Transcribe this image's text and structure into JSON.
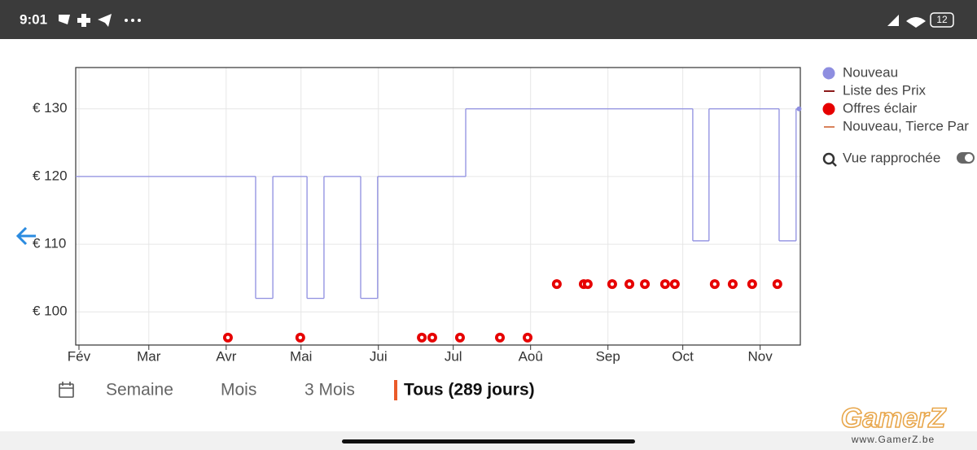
{
  "status_bar": {
    "time": "9:01",
    "battery": "12"
  },
  "chart_data": {
    "type": "step",
    "ylim": [
      95.1,
      136.1
    ],
    "yticks": [
      {
        "value": 100,
        "label": "€ 100"
      },
      {
        "value": 110,
        "label": "€ 110"
      },
      {
        "value": 120,
        "label": "€ 120"
      },
      {
        "value": 130,
        "label": "€ 130"
      }
    ],
    "xlim": [
      -1.3,
      289.1
    ],
    "xticks": [
      {
        "value": 0,
        "label": "Fév"
      },
      {
        "value": 28,
        "label": "Mar"
      },
      {
        "value": 59,
        "label": "Avr"
      },
      {
        "value": 89,
        "label": "Mai"
      },
      {
        "value": 120,
        "label": "Jui"
      },
      {
        "value": 150,
        "label": "Jul"
      },
      {
        "value": 181,
        "label": "Aoû"
      },
      {
        "value": 212,
        "label": "Sep"
      },
      {
        "value": 242,
        "label": "Oct"
      },
      {
        "value": 273,
        "label": "Nov"
      }
    ],
    "grid": true,
    "series": [
      {
        "name": "Nouveau",
        "color": "#8e8ee0",
        "marker": "dot",
        "x": [
          -1.3,
          70.8,
          77.7,
          91.4,
          98.2,
          112.9,
          119.7,
          155,
          246,
          252.5,
          280.6,
          287.4,
          288.6
        ],
        "values": [
          120,
          102,
          120,
          102,
          120,
          102,
          120,
          130,
          110.5,
          130,
          110.5,
          130,
          130
        ]
      },
      {
        "name": "Liste des Prix",
        "color": "#8b1a1a",
        "marker": "line",
        "x": [],
        "values": []
      },
      {
        "name": "Offres éclair",
        "color": "#e60000",
        "marker": "dot",
        "x": [
          59.7,
          88.7,
          137.4,
          141.6,
          152.7,
          168.7,
          179.8,
          191.5,
          202.3,
          203.9,
          213.7,
          220.6,
          226.8,
          234.9,
          238.8,
          254.8,
          262,
          269.8,
          279.9
        ],
        "values": [
          96.2,
          96.2,
          96.2,
          96.2,
          96.2,
          96.2,
          96.2,
          104.1,
          104.1,
          104.1,
          104.1,
          104.1,
          104.1,
          104.1,
          104.1,
          104.1,
          104.1,
          104.1,
          104.1
        ]
      },
      {
        "name": "Nouveau, Tierce Par",
        "color": "#d9825b",
        "marker": "line",
        "x": [],
        "values": []
      }
    ]
  },
  "zoom_toggle": {
    "label": "Vue rapprochée"
  },
  "ranges": [
    "Semaine",
    "Mois",
    "3 Mois",
    "Tous (289 jours)"
  ],
  "watermark": {
    "title": "GamerZ",
    "url": "www.GamerZ.be"
  }
}
